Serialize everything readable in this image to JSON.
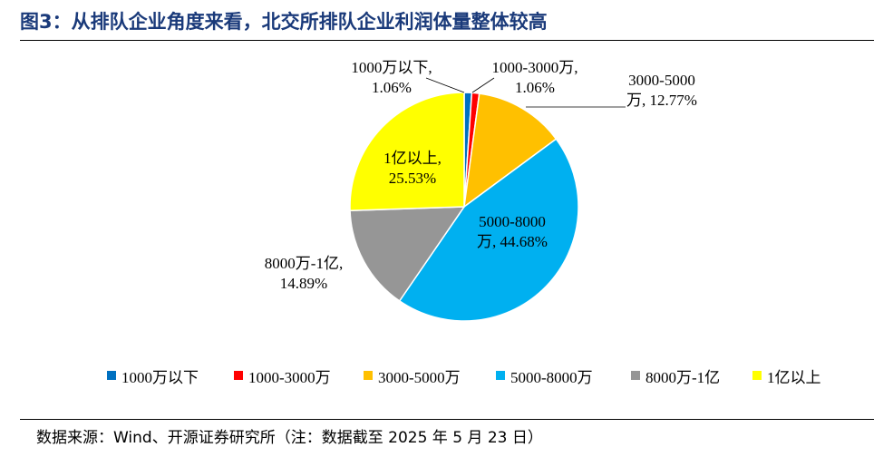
{
  "title": "图3：从排队企业角度来看，北交所排队企业利润体量整体较高",
  "source": "数据来源：Wind、开源证券研究所（注：数据截至 2025 年 5 月 23 日）",
  "chart_data": {
    "type": "pie",
    "title": "图3：从排队企业角度来看，北交所排队企业利润体量整体较高",
    "start_angle_deg": 0,
    "direction": "clockwise",
    "slices": [
      {
        "name": "1000万以下",
        "value": 1.06,
        "color": "#0070c0",
        "label_line1": "1000万以下,",
        "label_line2": "1.06%"
      },
      {
        "name": "1000-3000万",
        "value": 1.06,
        "color": "#ff0000",
        "label_line1": "1000-3000万,",
        "label_line2": "1.06%"
      },
      {
        "name": "3000-5000万",
        "value": 12.77,
        "color": "#ffc000",
        "label_line1": "3000-5000",
        "label_line2": "万, 12.77%"
      },
      {
        "name": "5000-8000万",
        "value": 44.68,
        "color": "#00b0f0",
        "label_line1": "5000-8000",
        "label_line2": "万, 44.68%"
      },
      {
        "name": "8000万-1亿",
        "value": 14.89,
        "color": "#969696",
        "label_line1": "8000万-1亿,",
        "label_line2": "14.89%"
      },
      {
        "name": "1亿以上",
        "value": 25.53,
        "color": "#ffff00",
        "label_line1": "1亿以上,",
        "label_line2": "25.53%"
      }
    ],
    "legend_position": "bottom"
  }
}
